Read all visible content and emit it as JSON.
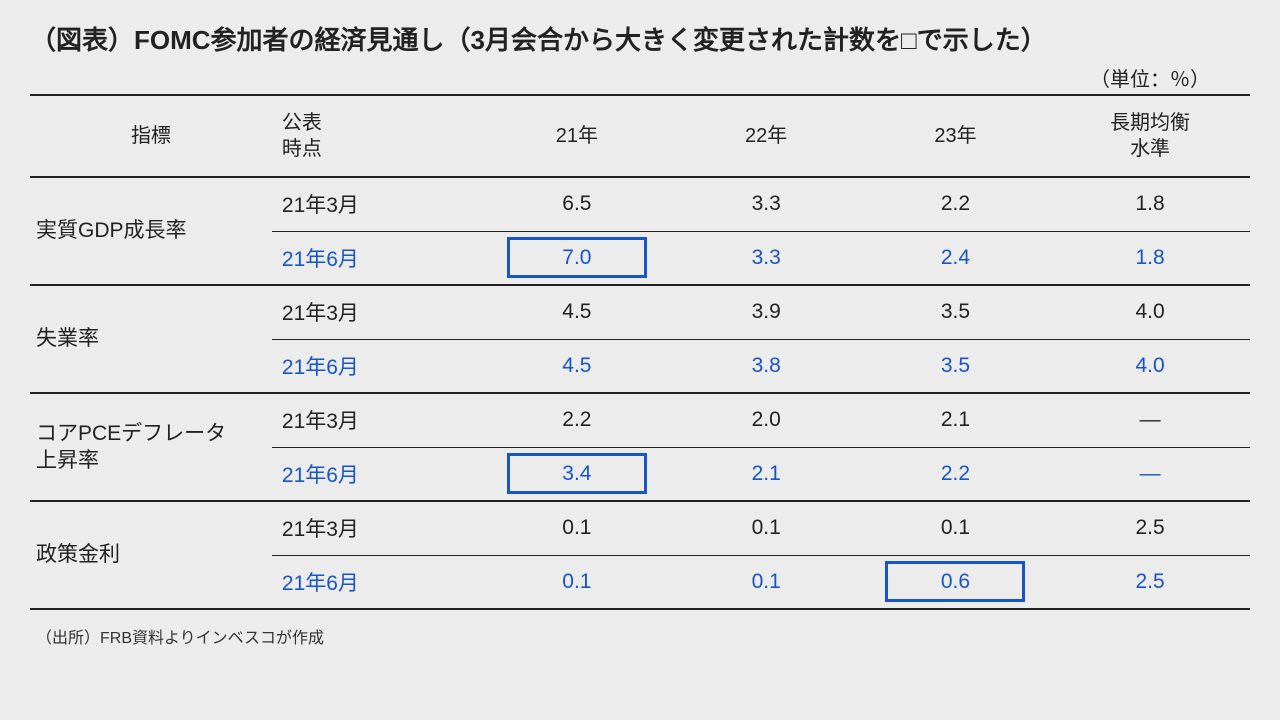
{
  "title": "（図表）FOMC参加者の経済見通し（3月会合から大きく変更された計数を□で示した）",
  "unit": "（単位：％）",
  "columns": {
    "indicator": "指標",
    "timepoint": "公表\n時点",
    "y21": "21年",
    "y22": "22年",
    "y23": "23年",
    "long": "長期均衡\n水準"
  },
  "colors": {
    "text": "#222222",
    "highlight": "#1754c4",
    "background": "#ececec",
    "border_thick": 2,
    "border_thin": 1,
    "box_border_width": 3
  },
  "rows": [
    {
      "indicator": "実質GDP成長率",
      "march": {
        "label": "21年3月",
        "y21": "6.5",
        "y22": "3.3",
        "y23": "2.2",
        "long": "1.8"
      },
      "june": {
        "label": "21年6月",
        "y21": "7.0",
        "y22": "3.3",
        "y23": "2.4",
        "long": "1.8",
        "boxed": [
          "y21"
        ]
      }
    },
    {
      "indicator": "失業率",
      "march": {
        "label": "21年3月",
        "y21": "4.5",
        "y22": "3.9",
        "y23": "3.5",
        "long": "4.0"
      },
      "june": {
        "label": "21年6月",
        "y21": "4.5",
        "y22": "3.8",
        "y23": "3.5",
        "long": "4.0",
        "boxed": []
      }
    },
    {
      "indicator": "コアPCEデフレータ\n上昇率",
      "march": {
        "label": "21年3月",
        "y21": "2.2",
        "y22": "2.0",
        "y23": "2.1",
        "long": "―"
      },
      "june": {
        "label": "21年6月",
        "y21": "3.4",
        "y22": "2.1",
        "y23": "2.2",
        "long": "―",
        "boxed": [
          "y21"
        ]
      }
    },
    {
      "indicator": "政策金利",
      "march": {
        "label": "21年3月",
        "y21": "0.1",
        "y22": "0.1",
        "y23": "0.1",
        "long": "2.5"
      },
      "june": {
        "label": "21年6月",
        "y21": "0.1",
        "y22": "0.1",
        "y23": "0.6",
        "long": "2.5",
        "boxed": [
          "y23"
        ]
      }
    }
  ],
  "source": "（出所）FRB資料よりインベスコが作成"
}
